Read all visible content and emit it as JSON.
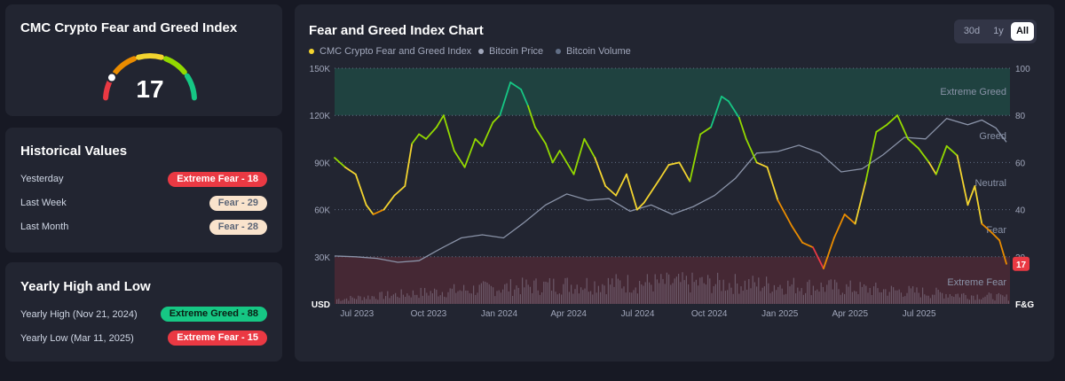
{
  "gauge": {
    "title": "CMC Crypto Fear and Greed Index",
    "value": "17",
    "level": 17,
    "segment_colors": [
      "#ea3943",
      "#ea8c00",
      "#f3d42f",
      "#93d900",
      "#16c784"
    ]
  },
  "historical": {
    "title": "Historical Values",
    "rows": [
      {
        "label": "Yesterday",
        "badge": "Extreme Fear - 18",
        "badge_style": "red"
      },
      {
        "label": "Last Week",
        "badge": "Fear - 29",
        "badge_style": "peach"
      },
      {
        "label": "Last Month",
        "badge": "Fear - 28",
        "badge_style": "peach"
      }
    ]
  },
  "yearly": {
    "title": "Yearly High and Low",
    "rows": [
      {
        "label": "Yearly High (Nov 21, 2024)",
        "badge": "Extreme Greed - 88",
        "badge_style": "green"
      },
      {
        "label": "Yearly Low (Mar 11, 2025)",
        "badge": "Extreme Fear - 15",
        "badge_style": "red"
      }
    ]
  },
  "chart_panel": {
    "title": "Fear and Greed Index Chart",
    "ranges": [
      "30d",
      "1y",
      "All"
    ],
    "active_range": "All",
    "legend": [
      {
        "label": "CMC Crypto Fear and Greed Index",
        "color": "#f3d42f"
      },
      {
        "label": "Bitcoin Price",
        "color": "#a1a7bb"
      },
      {
        "label": "Bitcoin Volume",
        "color": "#616e85"
      }
    ],
    "current_badge": "17"
  },
  "chart_data": {
    "type": "line",
    "x_tick_labels": [
      "Jul 2023",
      "Oct 2023",
      "Jan 2024",
      "Apr 2024",
      "Jul 2024",
      "Oct 2024",
      "Jan 2025",
      "Apr 2025",
      "Jul 2025"
    ],
    "x_tick_positions": [
      0.08,
      1.08,
      2.08,
      3.07,
      4.07,
      5.07,
      6.07,
      7.07,
      8.07
    ],
    "x_range": [
      0,
      9.6
    ],
    "left_axis": {
      "unit": "USD",
      "ticks": [
        "30K",
        "60K",
        "90K",
        "120K",
        "150K"
      ],
      "range": [
        0,
        150000
      ]
    },
    "right_axis": {
      "unit": "F&G",
      "ticks": [
        "20",
        "40",
        "60",
        "80",
        "100"
      ],
      "range": [
        0,
        100
      ]
    },
    "zones": [
      {
        "label": "Extreme Greed",
        "from": 80,
        "to": 100,
        "color": "#16c784"
      },
      {
        "label": "Greed",
        "from": 60,
        "to": 80
      },
      {
        "label": "Neutral",
        "from": 40,
        "to": 60
      },
      {
        "label": "Fear",
        "from": 20,
        "to": 40
      },
      {
        "label": "Extreme Fear",
        "from": 0,
        "to": 20,
        "color": "#ea3943"
      }
    ],
    "series": [
      {
        "name": "CMC Crypto Fear and Greed Index",
        "axis": "right",
        "x": [
          0.0,
          0.15,
          0.3,
          0.45,
          0.55,
          0.7,
          0.85,
          1.0,
          1.1,
          1.2,
          1.3,
          1.45,
          1.55,
          1.7,
          1.85,
          2.0,
          2.1,
          2.25,
          2.35,
          2.5,
          2.65,
          2.75,
          2.85,
          3.0,
          3.1,
          3.2,
          3.4,
          3.55,
          3.7,
          3.85,
          4.0,
          4.15,
          4.3,
          4.4,
          4.6,
          4.75,
          4.9,
          5.05,
          5.2,
          5.35,
          5.5,
          5.6,
          5.75,
          5.85,
          6.0,
          6.15,
          6.3,
          6.5,
          6.65,
          6.8,
          6.95,
          7.1,
          7.25,
          7.4,
          7.55,
          7.7,
          7.85,
          8.0,
          8.15,
          8.3,
          8.45,
          8.55,
          8.7,
          8.85,
          9.0,
          9.1,
          9.2,
          9.35,
          9.45,
          9.55
        ],
        "y": [
          62,
          58,
          55,
          42,
          38,
          40,
          46,
          50,
          68,
          72,
          70,
          75,
          80,
          65,
          58,
          70,
          67,
          77,
          80,
          94,
          91,
          84,
          75,
          68,
          60,
          65,
          55,
          70,
          62,
          50,
          46,
          55,
          40,
          43,
          52,
          59,
          60,
          52,
          72,
          75,
          88,
          86,
          79,
          70,
          60,
          58,
          44,
          33,
          26,
          24,
          15,
          28,
          38,
          34,
          52,
          73,
          76,
          80,
          70,
          66,
          60,
          55,
          67,
          63,
          42,
          50,
          34,
          30,
          27,
          17
        ]
      },
      {
        "name": "Bitcoin Price",
        "axis": "left",
        "x": [
          0.0,
          0.3,
          0.6,
          0.9,
          1.2,
          1.5,
          1.8,
          2.1,
          2.4,
          2.7,
          3.0,
          3.3,
          3.6,
          3.9,
          4.2,
          4.5,
          4.8,
          5.1,
          5.4,
          5.7,
          6.0,
          6.3,
          6.6,
          6.9,
          7.2,
          7.5,
          7.8,
          8.1,
          8.4,
          8.7,
          9.0,
          9.2,
          9.4,
          9.55
        ],
        "y": [
          30500,
          30000,
          29000,
          26500,
          27500,
          35000,
          42000,
          44000,
          42000,
          52000,
          63000,
          70000,
          66000,
          67000,
          59000,
          63000,
          57000,
          62000,
          69000,
          80000,
          96000,
          97000,
          101000,
          96000,
          84000,
          86000,
          95000,
          106000,
          105000,
          118000,
          114000,
          117000,
          112000,
          103000
        ]
      },
      {
        "name": "Bitcoin Volume",
        "axis": "bars"
      }
    ]
  }
}
